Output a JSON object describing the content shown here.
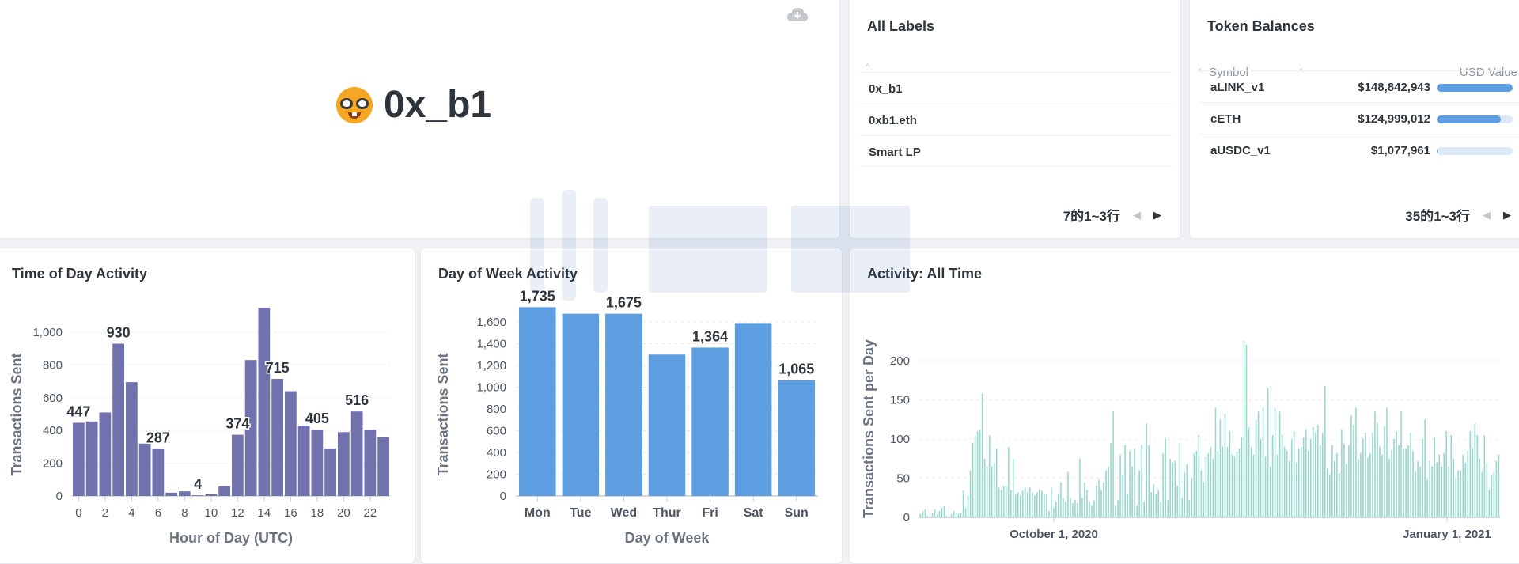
{
  "hero": {
    "name": "0x_b1",
    "emoji_icon": "nerd-face-icon",
    "download_icon": "cloud-download-icon"
  },
  "labels": {
    "title": "All Labels",
    "rows": [
      "0x_b1",
      "0xb1.eth",
      "Smart LP"
    ],
    "pager": {
      "text": "7的1~3行"
    }
  },
  "tokens": {
    "title": "Token Balances",
    "col_symbol": "Symbol",
    "col_usd": "USD Value",
    "rows": [
      {
        "symbol": "aLINK_v1",
        "usd": "$148,842,943",
        "value": 148842943
      },
      {
        "symbol": "cETH",
        "usd": "$124,999,012",
        "value": 124999012
      },
      {
        "symbol": "aUSDC_v1",
        "usd": "$1,077,961",
        "value": 1077961
      }
    ],
    "pager": {
      "text": "35的1~3行"
    },
    "bar_color": "#5c9ee0"
  },
  "tod": {
    "title": "Time of Day Activity",
    "chart_data": {
      "type": "bar",
      "title": "Time of Day Activity",
      "xlabel": "Hour of Day (UTC)",
      "ylabel": "Transactions Sent",
      "x": [
        0,
        1,
        2,
        3,
        4,
        5,
        6,
        7,
        8,
        9,
        10,
        11,
        12,
        13,
        14,
        15,
        16,
        17,
        18,
        19,
        20,
        21,
        22,
        23
      ],
      "values": [
        447,
        455,
        510,
        930,
        695,
        320,
        287,
        20,
        28,
        4,
        10,
        60,
        374,
        830,
        1150,
        715,
        640,
        430,
        405,
        290,
        390,
        516,
        405,
        360
      ],
      "ylim": [
        0,
        1200
      ],
      "yticks": [
        "0",
        "200",
        "400",
        "600",
        "800",
        "1,000"
      ],
      "xticks": [
        "0",
        "2",
        "4",
        "6",
        "8",
        "10",
        "12",
        "14",
        "16",
        "18",
        "20",
        "22"
      ],
      "data_labels": [
        {
          "i": 0,
          "text": "447"
        },
        {
          "i": 3,
          "text": "930"
        },
        {
          "i": 6,
          "text": "287"
        },
        {
          "i": 9,
          "text": "4"
        },
        {
          "i": 12,
          "text": "374"
        },
        {
          "i": 15,
          "text": "715"
        },
        {
          "i": 18,
          "text": "405"
        },
        {
          "i": 21,
          "text": "516"
        }
      ],
      "color": "#7172ad"
    }
  },
  "dow": {
    "title": "Day of Week Activity",
    "chart_data": {
      "type": "bar",
      "title": "Day of Week Activity",
      "xlabel": "Day of Week",
      "ylabel": "Transactions Sent",
      "categories": [
        "Mon",
        "Tue",
        "Wed",
        "Thur",
        "Fri",
        "Sat",
        "Sun"
      ],
      "values": [
        1735,
        1675,
        1675,
        1300,
        1364,
        1590,
        1065
      ],
      "ylim": [
        0,
        1750
      ],
      "yticks": [
        "0",
        "200",
        "400",
        "600",
        "800",
        "1,000",
        "1,200",
        "1,400",
        "1,600"
      ],
      "data_labels": [
        {
          "i": 0,
          "text": "1,735"
        },
        {
          "i": 2,
          "text": "1,675"
        },
        {
          "i": 4,
          "text": "1,364"
        },
        {
          "i": 6,
          "text": "1,065"
        }
      ],
      "color": "#5c9ee0"
    }
  },
  "ala": {
    "title": "Activity: All Time",
    "chart_data": {
      "type": "bar",
      "title": "Activity: All Time",
      "xlabel": "",
      "ylabel": "Transactions Sent per Day",
      "x_start": "2020-07-27",
      "x_ticks": [
        "October 1, 2020",
        "January 1, 2021"
      ],
      "ylim": [
        0,
        225
      ],
      "yticks": [
        "0",
        "50",
        "100",
        "150",
        "200"
      ],
      "values": [
        5,
        8,
        10,
        2,
        0,
        6,
        10,
        3,
        8,
        12,
        14,
        2,
        0,
        4,
        8,
        6,
        5,
        6,
        34,
        12,
        28,
        60,
        95,
        105,
        110,
        112,
        158,
        75,
        65,
        105,
        65,
        70,
        88,
        38,
        35,
        40,
        40,
        90,
        35,
        75,
        30,
        32,
        28,
        34,
        38,
        32,
        38,
        32,
        28,
        32,
        36,
        34,
        30,
        30,
        8,
        38,
        12,
        20,
        30,
        45,
        25,
        20,
        58,
        25,
        18,
        22,
        18,
        75,
        25,
        45,
        35,
        20,
        15,
        22,
        40,
        48,
        35,
        45,
        60,
        65,
        95,
        135,
        15,
        22,
        80,
        55,
        92,
        30,
        85,
        65,
        88,
        15,
        60,
        93,
        20,
        120,
        92,
        32,
        42,
        30,
        35,
        20,
        82,
        100,
        22,
        75,
        70,
        72,
        40,
        95,
        25,
        58,
        68,
        22,
        50,
        82,
        85,
        105,
        60,
        45,
        78,
        82,
        90,
        75,
        140,
        85,
        125,
        90,
        132,
        90,
        110,
        80,
        78,
        84,
        88,
        102,
        225,
        220,
        115,
        90,
        80,
        125,
        135,
        100,
        140,
        78,
        165,
        65,
        105,
        140,
        80,
        135,
        106,
        90,
        85,
        72,
        100,
        110,
        70,
        88,
        90,
        102,
        112,
        85,
        100,
        115,
        108,
        118,
        92,
        108,
        168,
        62,
        55,
        92,
        72,
        82,
        56,
        112,
        94,
        68,
        92,
        130,
        118,
        140,
        75,
        82,
        100,
        108,
        76,
        82,
        108,
        135,
        120,
        90,
        80,
        116,
        140,
        75,
        86,
        100,
        110,
        92,
        135,
        88,
        88,
        92,
        108,
        85,
        58,
        72,
        65,
        100,
        125,
        48,
        72,
        65,
        102,
        70,
        80,
        65,
        82,
        110,
        65,
        105,
        75,
        50,
        60,
        60,
        80,
        70,
        85,
        110,
        88,
        120,
        105,
        75,
        58,
        105,
        70,
        35,
        55,
        58,
        72,
        80
      ],
      "color": "#98d8cd"
    }
  }
}
